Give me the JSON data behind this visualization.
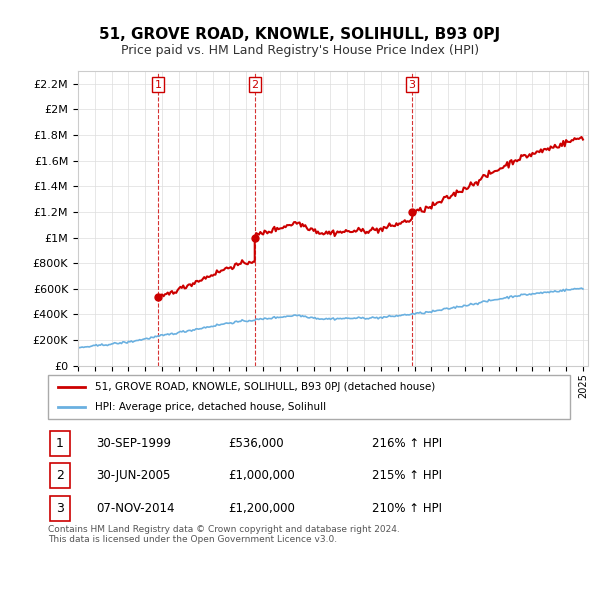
{
  "title": "51, GROVE ROAD, KNOWLE, SOLIHULL, B93 0PJ",
  "subtitle": "Price paid vs. HM Land Registry's House Price Index (HPI)",
  "ylabel_ticks": [
    "£0",
    "£200K",
    "£400K",
    "£600K",
    "£800K",
    "£1M",
    "£1.2M",
    "£1.4M",
    "£1.6M",
    "£1.8M",
    "£2M",
    "£2.2M"
  ],
  "ytick_values": [
    0,
    200000,
    400000,
    600000,
    800000,
    1000000,
    1200000,
    1400000,
    1600000,
    1800000,
    2000000,
    2200000
  ],
  "ylim": [
    0,
    2300000
  ],
  "hpi_color": "#6ab0e0",
  "price_color": "#cc0000",
  "transaction_color": "#cc0000",
  "vline_color": "#cc0000",
  "transactions": [
    {
      "date": 1999.75,
      "price": 536000,
      "label": "1"
    },
    {
      "date": 2005.5,
      "price": 1000000,
      "label": "2"
    },
    {
      "date": 2014.85,
      "price": 1200000,
      "label": "3"
    }
  ],
  "legend_property_label": "51, GROVE ROAD, KNOWLE, SOLIHULL, B93 0PJ (detached house)",
  "legend_hpi_label": "HPI: Average price, detached house, Solihull",
  "table_rows": [
    {
      "num": "1",
      "date": "30-SEP-1999",
      "price": "£536,000",
      "hpi": "216% ↑ HPI"
    },
    {
      "num": "2",
      "date": "30-JUN-2005",
      "price": "£1,000,000",
      "hpi": "215% ↑ HPI"
    },
    {
      "num": "3",
      "date": "07-NOV-2014",
      "price": "£1,200,000",
      "hpi": "210% ↑ HPI"
    }
  ],
  "footer": "Contains HM Land Registry data © Crown copyright and database right 2024.\nThis data is licensed under the Open Government Licence v3.0.",
  "background_color": "#ffffff",
  "grid_color": "#dddddd"
}
